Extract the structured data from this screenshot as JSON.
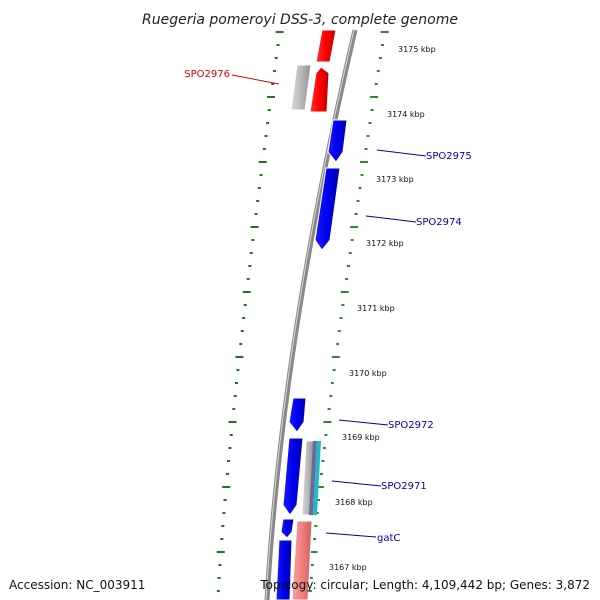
{
  "title": "Ruegeria pomeroyi DSS-3, complete genome",
  "colors": {
    "backbone": "#888888",
    "forward_tick": "#2e8b2e",
    "reverse_tick": "#1a7a1a",
    "gene_blue": "#0000ee",
    "gene_red": "#ff0000",
    "gene_pink": "#f08080",
    "gene_grey": "#b8b8b8",
    "gene_cyan": "#22b8c8",
    "label_blue": "#0000aa",
    "label_red": "#dd0000"
  },
  "ticks": [
    {
      "label": "3175 kbp"
    },
    {
      "label": "3174 kbp"
    },
    {
      "label": "3173 kbp"
    },
    {
      "label": "3172 kbp"
    },
    {
      "label": "3171 kbp"
    },
    {
      "label": "3170 kbp"
    },
    {
      "label": "3169 kbp"
    },
    {
      "label": "3168 kbp"
    },
    {
      "label": "3167 kbp"
    }
  ],
  "gene_labels": [
    {
      "name": "SPO2976",
      "color": "red"
    },
    {
      "name": "SPO2975",
      "color": "blue"
    },
    {
      "name": "SPO2974",
      "color": "blue"
    },
    {
      "name": "SPO2972",
      "color": "blue"
    },
    {
      "name": "SPO2971",
      "color": "blue"
    },
    {
      "name": "gatC",
      "color": "blue"
    }
  ],
  "footer": {
    "accession": "Accession: NC_003911",
    "topology": "Topology: circular; Length: 4,109,442 bp; Genes: 3,872"
  }
}
